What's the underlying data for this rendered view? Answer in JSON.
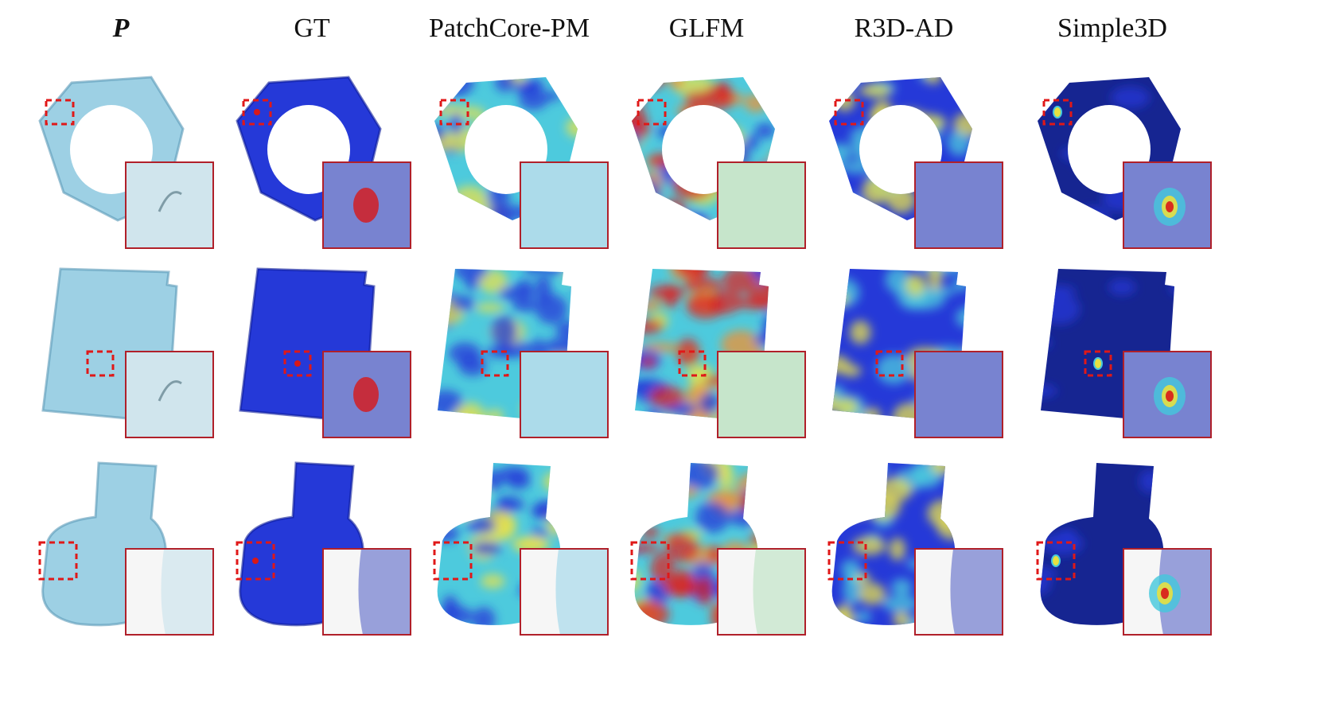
{
  "figure": {
    "columns": [
      {
        "id": "p",
        "label": "P",
        "style": "raw"
      },
      {
        "id": "gt",
        "label": "GT",
        "style": "gt"
      },
      {
        "id": "pcpm",
        "label": "PatchCore-PM",
        "style": "heat-cyan"
      },
      {
        "id": "glfm",
        "label": "GLFM",
        "style": "heat-warm"
      },
      {
        "id": "r3dad",
        "label": "R3D-AD",
        "style": "heat-blue"
      },
      {
        "id": "simple3d",
        "label": "Simple3D",
        "style": "ours"
      }
    ],
    "rows": [
      {
        "id": "nut",
        "shape": "hex-nut"
      },
      {
        "id": "plate",
        "shape": "plate"
      },
      {
        "id": "cylinder",
        "shape": "cylinder"
      }
    ],
    "colors": {
      "raw": "#8cc8e0",
      "gt_blue": "#1a2fd6",
      "deep_blue": "#0a1a8c",
      "cyan": "#44c8dc",
      "yellow": "#e8e040",
      "orange": "#f08c28",
      "red": "#d81818",
      "box": "#e01818",
      "inset_border": "#b0202a"
    }
  }
}
